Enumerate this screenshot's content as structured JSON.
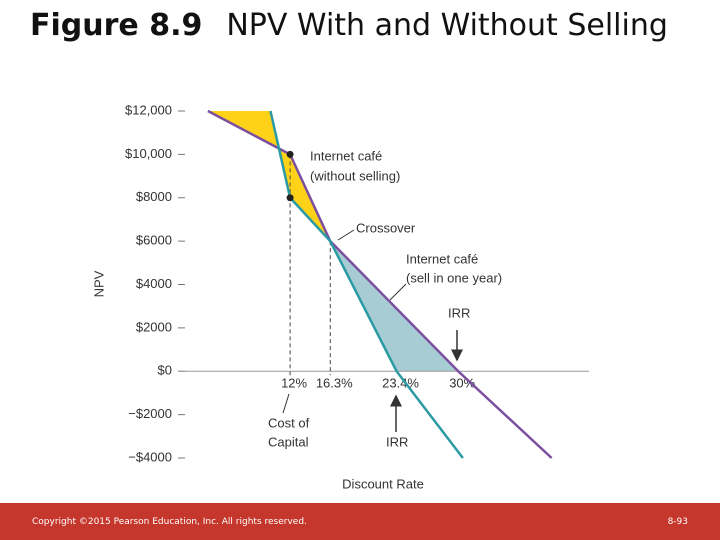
{
  "header": {
    "figure": "Figure 8.9",
    "title": "NPV With and Without Selling"
  },
  "chart_data": {
    "type": "line",
    "y_label": "NPV",
    "x_label": "Discount Rate",
    "xlim": [
      0,
      44
    ],
    "ylim": [
      -4000,
      12000
    ],
    "yticks": [
      {
        "value": 12000,
        "label": "$12,000"
      },
      {
        "value": 10000,
        "label": "$10,000"
      },
      {
        "value": 8000,
        "label": "$8000"
      },
      {
        "value": 6000,
        "label": "$6000"
      },
      {
        "value": 4000,
        "label": "$4000"
      },
      {
        "value": 2000,
        "label": "$2000"
      },
      {
        "value": 0,
        "label": "$0"
      },
      {
        "value": -2000,
        "label": "−$2000"
      },
      {
        "value": -4000,
        "label": "−$4000"
      }
    ],
    "series": [
      {
        "name": "Internet café (without selling)",
        "color": "#7b4fa0",
        "x": [
          3.2,
          12,
          16.3,
          30,
          40
        ],
        "values": [
          12000,
          10000,
          6000,
          0,
          -4000
        ]
      },
      {
        "name": "Internet café (sell in one year)",
        "color": "#2a9aa3",
        "x": [
          9.9,
          12,
          16.3,
          23.4,
          30.5
        ],
        "values": [
          12000,
          8000,
          6000,
          0,
          -4000
        ]
      }
    ],
    "area_colors": [
      "#ffd21a",
      "#a8ccd3"
    ],
    "rate_markers": [
      {
        "value": 12,
        "label": "12%"
      },
      {
        "value": 16.3,
        "label": "16.3%"
      },
      {
        "value": 23.4,
        "label": "23.4%"
      },
      {
        "value": 30,
        "label": "30%"
      }
    ],
    "annotations": {
      "without_1": "Internet café",
      "without_2": "(without selling)",
      "crossover": "Crossover",
      "sell_1": "Internet café",
      "sell_2": "(sell in one year)",
      "irr_top": "IRR",
      "irr_bottom": "IRR",
      "cost_1": "Cost of",
      "cost_2": "Capital"
    }
  },
  "footer": {
    "copyright": "Copyright ©2015 Pearson Education, Inc. All rights reserved.",
    "page": "8-93"
  }
}
